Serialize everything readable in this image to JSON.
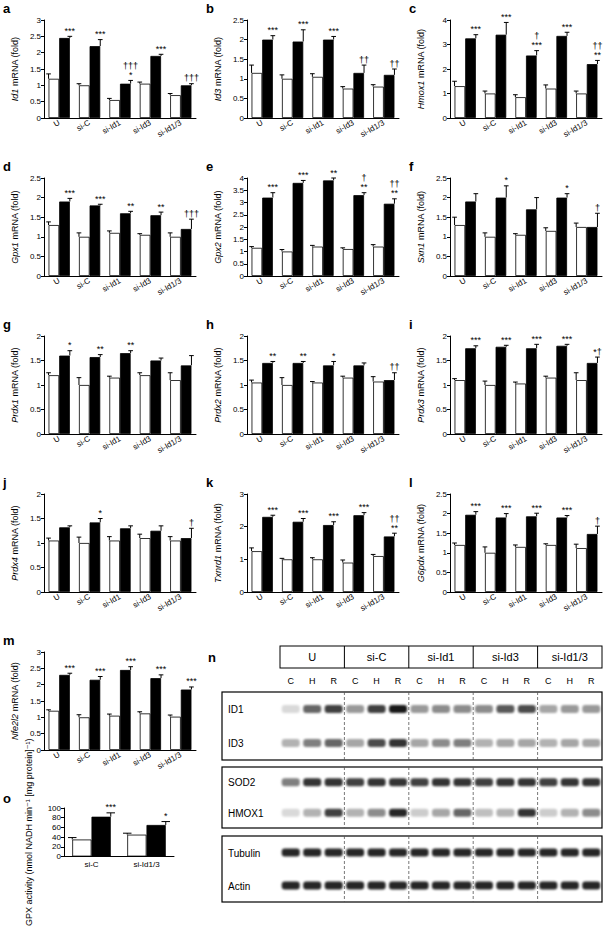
{
  "chart_data": [
    {
      "panel": "a",
      "type": "bar",
      "gene": "Id1",
      "ylabel": "mRNA (fold)",
      "categories": [
        "U",
        "si-C",
        "si-Id1",
        "si-Id3",
        "si-Id1/3"
      ],
      "ylim": [
        0,
        3
      ],
      "yticks": [
        0,
        0.5,
        1,
        1.5,
        2,
        2.5,
        3
      ],
      "grid": false,
      "series": [
        {
          "color": "#ffffff",
          "values": [
            1.2,
            1.0,
            0.55,
            1.05,
            0.7
          ],
          "errors": [
            0.15,
            0.05,
            0.05,
            0.05,
            0.05
          ]
        },
        {
          "color": "#000000",
          "values": [
            2.45,
            2.2,
            1.05,
            1.9,
            1.0
          ],
          "errors": [
            0.05,
            0.2,
            0.1,
            0.05,
            0.05
          ],
          "annotations": [
            [
              "***"
            ],
            [
              "***"
            ],
            [
              "†††",
              "*"
            ],
            [
              "***"
            ],
            [
              "†††"
            ]
          ]
        }
      ]
    },
    {
      "panel": "b",
      "type": "bar",
      "gene": "Id3",
      "ylabel": "mRNA (fold)",
      "categories": [
        "U",
        "si-C",
        "si-Id1",
        "si-Id3",
        "si-Id1/3"
      ],
      "ylim": [
        0,
        2.5
      ],
      "yticks": [
        0,
        0.5,
        1,
        1.5,
        2,
        2.5
      ],
      "grid": false,
      "series": [
        {
          "color": "#ffffff",
          "values": [
            1.15,
            1.0,
            1.05,
            0.75,
            0.8
          ],
          "errors": [
            0.2,
            0.1,
            0.08,
            0.05,
            0.05
          ]
        },
        {
          "color": "#000000",
          "values": [
            2.0,
            1.95,
            2.0,
            1.15,
            1.1
          ],
          "errors": [
            0.1,
            0.3,
            0.08,
            0.2,
            0.15
          ],
          "annotations": [
            [
              "***"
            ],
            [
              "***"
            ],
            [
              "***"
            ],
            [
              "††"
            ],
            [
              "††"
            ]
          ]
        }
      ]
    },
    {
      "panel": "c",
      "type": "bar",
      "gene": "Hmox1",
      "ylabel": "mRNA (fold)",
      "categories": [
        "U",
        "si-C",
        "si-Id1",
        "si-Id3",
        "si-Id1/3"
      ],
      "ylim": [
        0,
        4
      ],
      "yticks": [
        0,
        1,
        2,
        3,
        4
      ],
      "grid": false,
      "series": [
        {
          "color": "#ffffff",
          "values": [
            1.3,
            1.0,
            0.85,
            1.2,
            1.0
          ],
          "errors": [
            0.2,
            0.1,
            0.1,
            0.15,
            0.1
          ]
        },
        {
          "color": "#000000",
          "values": [
            3.25,
            3.4,
            2.55,
            3.35,
            2.2
          ],
          "errors": [
            0.15,
            0.5,
            0.2,
            0.15,
            0.15
          ],
          "annotations": [
            [
              "***"
            ],
            [
              "***"
            ],
            [
              "†",
              "***"
            ],
            [
              "***"
            ],
            [
              "††",
              "**"
            ]
          ]
        }
      ]
    },
    {
      "panel": "d",
      "type": "bar",
      "gene": "Gpx1",
      "ylabel": "mRNA (fold)",
      "categories": [
        "U",
        "si-C",
        "si-Id1",
        "si-Id3",
        "si-Id1/3"
      ],
      "ylim": [
        0,
        2.5
      ],
      "yticks": [
        0,
        0.5,
        1,
        1.5,
        2,
        2.5
      ],
      "grid": false,
      "series": [
        {
          "color": "#ffffff",
          "values": [
            1.3,
            1.0,
            1.1,
            1.05,
            1.0
          ],
          "errors": [
            0.08,
            0.1,
            0.05,
            0.03,
            0.1
          ]
        },
        {
          "color": "#000000",
          "values": [
            1.9,
            1.8,
            1.6,
            1.55,
            1.2
          ],
          "errors": [
            0.08,
            0.03,
            0.05,
            0.08,
            0.25
          ],
          "annotations": [
            [
              "***"
            ],
            [
              "***"
            ],
            [
              "**"
            ],
            [
              "**"
            ],
            [
              "†††"
            ]
          ]
        }
      ]
    },
    {
      "panel": "e",
      "type": "bar",
      "gene": "Gpx2",
      "ylabel": "mRNA (fold)",
      "categories": [
        "U",
        "si-C",
        "si-Id1",
        "si-Id3",
        "si-Id1/3"
      ],
      "ylim": [
        0,
        4
      ],
      "yticks": [
        0,
        0.5,
        1,
        1.5,
        2,
        2.5,
        3,
        3.5,
        4
      ],
      "grid": false,
      "series": [
        {
          "color": "#ffffff",
          "values": [
            1.15,
            1.0,
            1.2,
            1.1,
            1.2
          ],
          "errors": [
            0.05,
            0.08,
            0.05,
            0.05,
            0.08
          ]
        },
        {
          "color": "#000000",
          "values": [
            3.2,
            3.8,
            3.9,
            3.3,
            2.95
          ],
          "errors": [
            0.2,
            0.1,
            0.1,
            0.1,
            0.2
          ],
          "annotations": [
            [
              "***"
            ],
            [
              "***"
            ],
            [
              "**"
            ],
            [
              "†",
              "**"
            ],
            [
              "††",
              "**"
            ]
          ]
        }
      ]
    },
    {
      "panel": "f",
      "type": "bar",
      "gene": "Sxn1",
      "ylabel": "mRNA (fold)",
      "categories": [
        "U",
        "si-C",
        "si-Id1",
        "si-Id3",
        "si-Id1/3"
      ],
      "ylim": [
        0,
        2.5
      ],
      "yticks": [
        0,
        0.5,
        1,
        1.5,
        2,
        2.5
      ],
      "grid": false,
      "series": [
        {
          "color": "#ffffff",
          "values": [
            1.3,
            1.0,
            1.05,
            1.15,
            1.25
          ],
          "errors": [
            0.2,
            0.1,
            0.03,
            0.08,
            0.1
          ]
        },
        {
          "color": "#000000",
          "values": [
            1.9,
            2.0,
            1.7,
            2.0,
            1.25
          ],
          "errors": [
            0.2,
            0.3,
            0.3,
            0.1,
            0.35
          ],
          "annotations": [
            null,
            [
              "*"
            ],
            null,
            [
              "*"
            ],
            [
              "†"
            ]
          ]
        }
      ]
    },
    {
      "panel": "g",
      "type": "bar",
      "gene": "Prdx1",
      "ylabel": "mRNA (fold)",
      "categories": [
        "U",
        "si-C",
        "si-Id1",
        "si-Id3",
        "si-Id1/3"
      ],
      "ylim": [
        0,
        2
      ],
      "yticks": [
        0,
        0.5,
        1,
        1.5,
        2
      ],
      "grid": false,
      "series": [
        {
          "color": "#ffffff",
          "values": [
            1.2,
            1.0,
            1.15,
            1.2,
            1.1
          ],
          "errors": [
            0.05,
            0.15,
            0.03,
            0.05,
            0.15
          ]
        },
        {
          "color": "#000000",
          "values": [
            1.6,
            1.57,
            1.65,
            1.5,
            1.4
          ],
          "errors": [
            0.1,
            0.05,
            0.05,
            0.05,
            0.2
          ],
          "annotations": [
            [
              "*"
            ],
            [
              "**"
            ],
            [
              "**"
            ],
            null,
            null
          ]
        }
      ]
    },
    {
      "panel": "h",
      "type": "bar",
      "gene": "Prdx2",
      "ylabel": "mRNA (fold)",
      "categories": [
        "U",
        "si-C",
        "si-Id1",
        "si-Id3",
        "si-Id1/3"
      ],
      "ylim": [
        0,
        2
      ],
      "yticks": [
        0,
        0.5,
        1,
        1.5,
        2
      ],
      "grid": false,
      "series": [
        {
          "color": "#ffffff",
          "values": [
            1.05,
            1.0,
            1.05,
            1.15,
            1.07
          ],
          "errors": [
            0.05,
            0.15,
            0.02,
            0.03,
            0.1
          ]
        },
        {
          "color": "#000000",
          "values": [
            1.45,
            1.45,
            1.4,
            1.4,
            1.1
          ],
          "errors": [
            0.03,
            0.03,
            0.08,
            0.05,
            0.15
          ],
          "annotations": [
            [
              "**"
            ],
            [
              "**"
            ],
            [
              "*"
            ],
            null,
            [
              "††"
            ]
          ]
        }
      ]
    },
    {
      "panel": "i",
      "type": "bar",
      "gene": "Prdx3",
      "ylabel": "mRNA (fold)",
      "categories": [
        "U",
        "si-C",
        "si-Id1",
        "si-Id3",
        "si-Id1/3"
      ],
      "ylim": [
        0,
        2
      ],
      "yticks": [
        0,
        0.5,
        1,
        1.5,
        2
      ],
      "grid": false,
      "series": [
        {
          "color": "#ffffff",
          "values": [
            1.1,
            1.0,
            1.03,
            1.15,
            1.1
          ],
          "errors": [
            0.03,
            0.08,
            0.03,
            0.03,
            0.15
          ]
        },
        {
          "color": "#000000",
          "values": [
            1.75,
            1.78,
            1.75,
            1.8,
            1.45
          ],
          "errors": [
            0.05,
            0.03,
            0.08,
            0.03,
            0.12
          ],
          "annotations": [
            [
              "***"
            ],
            [
              "***"
            ],
            [
              "***"
            ],
            [
              "***"
            ],
            [
              "*†"
            ]
          ]
        }
      ]
    },
    {
      "panel": "j",
      "type": "bar",
      "gene": "Prdx4",
      "ylabel": "mRNA (fold)",
      "categories": [
        "U",
        "si-C",
        "si-Id1",
        "si-Id3",
        "si-Id1/3"
      ],
      "ylim": [
        0,
        2
      ],
      "yticks": [
        0,
        0.5,
        1,
        1.5,
        2
      ],
      "grid": false,
      "series": [
        {
          "color": "#ffffff",
          "values": [
            1.05,
            1.0,
            1.05,
            1.1,
            1.05
          ],
          "errors": [
            0.05,
            0.12,
            0.08,
            0.08,
            0.08
          ]
        },
        {
          "color": "#000000",
          "values": [
            1.32,
            1.42,
            1.3,
            1.25,
            1.1
          ],
          "errors": [
            0.03,
            0.08,
            0.05,
            0.1,
            0.2
          ],
          "annotations": [
            null,
            [
              "*"
            ],
            null,
            null,
            [
              "†"
            ]
          ]
        }
      ]
    },
    {
      "panel": "k",
      "type": "bar",
      "gene": "Txnrd1",
      "ylabel": "mRNA (fold)",
      "categories": [
        "U",
        "si-C",
        "si-Id1",
        "si-Id3",
        "si-Id1/3"
      ],
      "ylim": [
        0,
        3
      ],
      "yticks": [
        0,
        1,
        2,
        3
      ],
      "grid": false,
      "series": [
        {
          "color": "#ffffff",
          "values": [
            1.25,
            1.0,
            1.0,
            0.9,
            1.1
          ],
          "errors": [
            0.1,
            0.03,
            0.05,
            0.08,
            0.05
          ]
        },
        {
          "color": "#000000",
          "values": [
            2.3,
            2.15,
            2.05,
            2.35,
            1.7
          ],
          "errors": [
            0.05,
            0.1,
            0.1,
            0.08,
            0.1
          ],
          "annotations": [
            [
              "***"
            ],
            [
              "***"
            ],
            [
              "***"
            ],
            [
              "***"
            ],
            [
              "††",
              "**"
            ]
          ]
        }
      ]
    },
    {
      "panel": "l",
      "type": "bar",
      "gene": "G6pdx",
      "ylabel": "mRNA (fold)",
      "categories": [
        "U",
        "si-C",
        "si-Id1",
        "si-Id3",
        "si-Id1/3"
      ],
      "ylim": [
        0,
        2.5
      ],
      "yticks": [
        0,
        0.5,
        1,
        1.5,
        2,
        2.5
      ],
      "grid": false,
      "series": [
        {
          "color": "#ffffff",
          "values": [
            1.2,
            1.0,
            1.15,
            1.2,
            1.12
          ],
          "errors": [
            0.05,
            0.15,
            0.05,
            0.03,
            0.1
          ]
        },
        {
          "color": "#000000",
          "values": [
            1.97,
            1.9,
            1.93,
            1.9,
            1.48
          ],
          "errors": [
            0.08,
            0.1,
            0.08,
            0.05,
            0.2
          ],
          "annotations": [
            [
              "***"
            ],
            [
              "***"
            ],
            [
              "***"
            ],
            [
              "***"
            ],
            [
              "†"
            ]
          ]
        }
      ]
    },
    {
      "panel": "m",
      "type": "bar",
      "gene": "Nfe2l2",
      "ylabel": "mRNA (fold)",
      "categories": [
        "U",
        "si-C",
        "si-Id1",
        "si-Id3",
        "si-Id1/3"
      ],
      "ylim": [
        0,
        3
      ],
      "yticks": [
        0,
        0.5,
        1,
        1.5,
        2,
        2.5,
        3
      ],
      "grid": false,
      "series": [
        {
          "color": "#ffffff",
          "values": [
            1.2,
            1.0,
            1.05,
            1.12,
            1.02
          ],
          "errors": [
            0.03,
            0.08,
            0.05,
            0.05,
            0.05
          ]
        },
        {
          "color": "#000000",
          "values": [
            2.3,
            2.15,
            2.45,
            2.2,
            1.85
          ],
          "errors": [
            0.05,
            0.1,
            0.1,
            0.1,
            0.08
          ],
          "annotations": [
            [
              "***"
            ],
            [
              "***"
            ],
            [
              "***"
            ],
            [
              "***"
            ],
            [
              "***"
            ]
          ]
        }
      ]
    },
    {
      "panel": "o",
      "type": "bar",
      "ylabel": "GPX activity (nmol NADH min⁻¹ [mg protein]⁻¹)",
      "categories": [
        "si-C",
        "si-Id1/3"
      ],
      "ylim": [
        0,
        100
      ],
      "yticks": [
        0,
        20,
        40,
        60,
        80,
        100
      ],
      "grid": false,
      "series": [
        {
          "color": "#ffffff",
          "values": [
            35,
            45
          ],
          "errors": [
            4,
            3
          ]
        },
        {
          "color": "#000000",
          "values": [
            82,
            65
          ],
          "errors": [
            8,
            7
          ],
          "annotations": [
            [
              "***"
            ],
            [
              "*"
            ]
          ]
        }
      ]
    }
  ],
  "blot": {
    "panel": "n",
    "groups": [
      "U",
      "si-C",
      "si-Id1",
      "si-Id3",
      "si-Id1/3"
    ],
    "lanes": [
      "C",
      "H",
      "R"
    ],
    "boxes": [
      [
        {
          "label": "ID1",
          "bands": [
            0.15,
            0.6,
            0.75,
            0.4,
            0.75,
            0.9,
            0.4,
            0.45,
            0.45,
            0.45,
            0.65,
            0.7,
            0.35,
            0.4,
            0.4
          ]
        },
        {
          "label": "ID3",
          "bands": [
            0.3,
            0.5,
            0.6,
            0.35,
            0.7,
            0.8,
            0.35,
            0.45,
            0.5,
            0.3,
            0.35,
            0.35,
            0.3,
            0.35,
            0.35
          ]
        }
      ],
      [
        {
          "label": "SOD2",
          "bands": [
            0.5,
            0.8,
            0.8,
            0.75,
            0.8,
            0.8,
            0.75,
            0.8,
            0.8,
            0.75,
            0.8,
            0.8,
            0.75,
            0.8,
            0.8
          ]
        },
        {
          "label": "HMOX1",
          "bands": [
            0.15,
            0.3,
            0.75,
            0.3,
            0.45,
            0.85,
            0.2,
            0.35,
            0.6,
            0.25,
            0.3,
            0.8,
            0.2,
            0.3,
            0.45
          ]
        }
      ],
      [
        {
          "label": "Tubulin",
          "bands": [
            0.85,
            0.85,
            0.85,
            0.85,
            0.85,
            0.85,
            0.85,
            0.85,
            0.85,
            0.85,
            0.85,
            0.85,
            0.85,
            0.85,
            0.85
          ]
        },
        {
          "label": "Actin",
          "bands": [
            0.85,
            0.85,
            0.85,
            0.85,
            0.85,
            0.85,
            0.85,
            0.85,
            0.85,
            0.85,
            0.85,
            0.85,
            0.85,
            0.85,
            0.85
          ]
        }
      ]
    ]
  }
}
